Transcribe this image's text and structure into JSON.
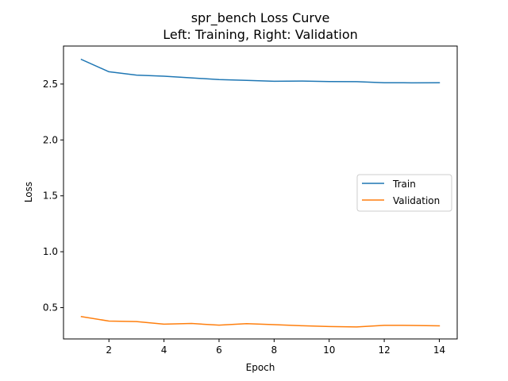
{
  "chart_data": {
    "type": "line",
    "title": "spr_bench Loss Curve",
    "subtitle": "Left: Training, Right: Validation",
    "xlabel": "Epoch",
    "ylabel": "Loss",
    "xlim": [
      0.35,
      14.65
    ],
    "ylim": [
      0.22,
      2.84
    ],
    "xticks": [
      2,
      4,
      6,
      8,
      10,
      12,
      14
    ],
    "yticks": [
      0.5,
      1.0,
      1.5,
      2.0,
      2.5
    ],
    "ytick_labels": [
      "0.5",
      "1.0",
      "1.5",
      "2.0",
      "2.5"
    ],
    "grid": false,
    "legend_position": "center-right",
    "x": [
      1,
      2,
      3,
      4,
      5,
      6,
      7,
      8,
      9,
      10,
      11,
      12,
      13,
      14
    ],
    "series": [
      {
        "name": "Train",
        "color": "#1f77b4",
        "values": [
          2.72,
          2.61,
          2.58,
          2.57,
          2.555,
          2.54,
          2.533,
          2.525,
          2.527,
          2.522,
          2.521,
          2.512,
          2.511,
          2.512
        ]
      },
      {
        "name": "Validation",
        "color": "#ff7f0e",
        "values": [
          0.42,
          0.38,
          0.375,
          0.352,
          0.358,
          0.343,
          0.357,
          0.348,
          0.338,
          0.331,
          0.327,
          0.342,
          0.341,
          0.337
        ]
      }
    ]
  }
}
